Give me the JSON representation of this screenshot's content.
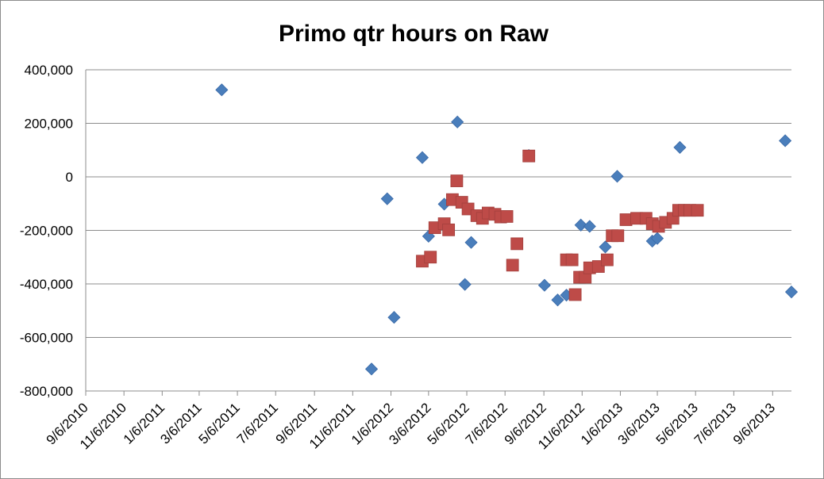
{
  "chart_data": {
    "type": "scatter",
    "title": "Primo qtr hours on Raw",
    "xlabel": "",
    "ylabel": "",
    "x_axis": {
      "type": "date",
      "min": "2010-09-06",
      "max": "2013-10-06",
      "tick_labels": [
        "9/6/2010",
        "11/6/2010",
        "1/6/2011",
        "3/6/2011",
        "5/6/2011",
        "7/6/2011",
        "9/6/2011",
        "11/6/2011",
        "1/6/2012",
        "3/6/2012",
        "5/6/2012",
        "7/6/2012",
        "9/6/2012",
        "11/6/2012",
        "1/6/2013",
        "3/6/2013",
        "5/6/2013",
        "7/6/2013",
        "9/6/2013"
      ],
      "tick_dates": [
        "2010-09-06",
        "2010-11-06",
        "2011-01-06",
        "2011-03-06",
        "2011-05-06",
        "2011-07-06",
        "2011-09-06",
        "2011-11-06",
        "2012-01-06",
        "2012-03-06",
        "2012-05-06",
        "2012-07-06",
        "2012-09-06",
        "2012-11-06",
        "2013-01-06",
        "2013-03-06",
        "2013-05-06",
        "2013-07-06",
        "2013-09-06"
      ]
    },
    "y_axis": {
      "min": -800000,
      "max": 400000,
      "tick_values": [
        400000,
        200000,
        0,
        -200000,
        -400000,
        -600000,
        -800000
      ],
      "tick_labels": [
        "400,000",
        "200,000",
        "0",
        "-200,000",
        "-400,000",
        "-600,000",
        "-800,000"
      ]
    },
    "grid": true,
    "legend": "none",
    "series": [
      {
        "marker": "diamond",
        "color": "#4a7ebb",
        "points": [
          {
            "x": "2011-04-11",
            "y": 325000
          },
          {
            "x": "2011-12-06",
            "y": -718000
          },
          {
            "x": "2011-12-31",
            "y": -82000
          },
          {
            "x": "2012-01-11",
            "y": -525000
          },
          {
            "x": "2012-02-25",
            "y": 72000
          },
          {
            "x": "2012-03-06",
            "y": -222000
          },
          {
            "x": "2012-03-31",
            "y": -102000
          },
          {
            "x": "2012-04-21",
            "y": 205000
          },
          {
            "x": "2012-05-03",
            "y": -402000
          },
          {
            "x": "2012-05-13",
            "y": -245000
          },
          {
            "x": "2012-08-13",
            "y": 80000
          },
          {
            "x": "2012-09-07",
            "y": -405000
          },
          {
            "x": "2012-09-28",
            "y": -460000
          },
          {
            "x": "2012-10-12",
            "y": -442000
          },
          {
            "x": "2012-11-04",
            "y": -180000
          },
          {
            "x": "2012-11-18",
            "y": -185000
          },
          {
            "x": "2012-12-13",
            "y": -262000
          },
          {
            "x": "2013-01-01",
            "y": 2000
          },
          {
            "x": "2013-02-26",
            "y": -240000
          },
          {
            "x": "2013-03-06",
            "y": -230000
          },
          {
            "x": "2013-04-11",
            "y": 110000
          },
          {
            "x": "2013-09-26",
            "y": 135000
          },
          {
            "x": "2013-10-06",
            "y": -430000
          }
        ]
      },
      {
        "marker": "square",
        "color": "#be4b48",
        "points": [
          {
            "x": "2012-02-25",
            "y": -315000
          },
          {
            "x": "2012-03-09",
            "y": -300000
          },
          {
            "x": "2012-03-16",
            "y": -190000
          },
          {
            "x": "2012-03-31",
            "y": -175000
          },
          {
            "x": "2012-04-07",
            "y": -198000
          },
          {
            "x": "2012-04-13",
            "y": -85000
          },
          {
            "x": "2012-04-20",
            "y": -15000
          },
          {
            "x": "2012-04-28",
            "y": -95000
          },
          {
            "x": "2012-05-08",
            "y": -120000
          },
          {
            "x": "2012-05-22",
            "y": -145000
          },
          {
            "x": "2012-05-31",
            "y": -155000
          },
          {
            "x": "2012-06-09",
            "y": -135000
          },
          {
            "x": "2012-06-20",
            "y": -140000
          },
          {
            "x": "2012-06-29",
            "y": -150000
          },
          {
            "x": "2012-07-09",
            "y": -148000
          },
          {
            "x": "2012-07-18",
            "y": -330000
          },
          {
            "x": "2012-07-25",
            "y": -250000
          },
          {
            "x": "2012-08-13",
            "y": 78000
          },
          {
            "x": "2012-10-12",
            "y": -310000
          },
          {
            "x": "2012-10-21",
            "y": -310000
          },
          {
            "x": "2012-10-26",
            "y": -440000
          },
          {
            "x": "2012-11-02",
            "y": -375000
          },
          {
            "x": "2012-11-11",
            "y": -375000
          },
          {
            "x": "2012-11-18",
            "y": -340000
          },
          {
            "x": "2012-12-02",
            "y": -335000
          },
          {
            "x": "2012-12-16",
            "y": -310000
          },
          {
            "x": "2012-12-24",
            "y": -220000
          },
          {
            "x": "2013-01-02",
            "y": -220000
          },
          {
            "x": "2013-01-15",
            "y": -160000
          },
          {
            "x": "2013-02-01",
            "y": -155000
          },
          {
            "x": "2013-02-16",
            "y": -155000
          },
          {
            "x": "2013-02-26",
            "y": -175000
          },
          {
            "x": "2013-03-08",
            "y": -185000
          },
          {
            "x": "2013-03-19",
            "y": -170000
          },
          {
            "x": "2013-03-31",
            "y": -155000
          },
          {
            "x": "2013-04-09",
            "y": -125000
          },
          {
            "x": "2013-04-18",
            "y": -125000
          },
          {
            "x": "2013-04-27",
            "y": -125000
          },
          {
            "x": "2013-05-09",
            "y": -125000
          }
        ]
      }
    ]
  }
}
